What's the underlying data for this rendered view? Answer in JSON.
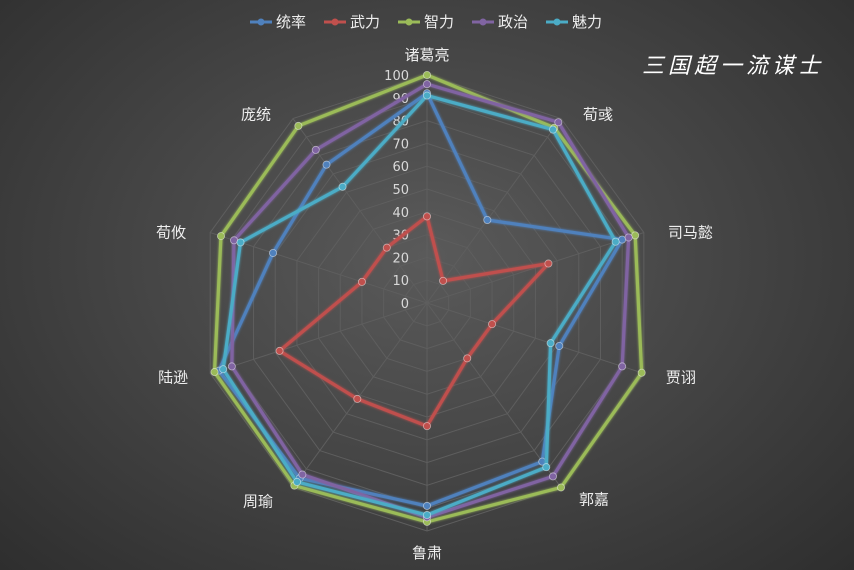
{
  "chart_data": {
    "type": "radar",
    "title": "三国超一流谋士",
    "categories": [
      "诸葛亮",
      "荀彧",
      "司马懿",
      "贾诩",
      "郭嘉",
      "鲁肃",
      "周瑜",
      "陆逊",
      "荀攸",
      "庞统"
    ],
    "series": [
      {
        "name": "统率",
        "color": "#4f81bd",
        "values": [
          92,
          45,
          90,
          61,
          86,
          89,
          95,
          96,
          71,
          75
        ]
      },
      {
        "name": "武力",
        "color": "#c0504d",
        "values": [
          38,
          12,
          56,
          30,
          30,
          54,
          52,
          68,
          30,
          30
        ]
      },
      {
        "name": "智力",
        "color": "#9bbb59",
        "values": [
          100,
          95,
          96,
          99,
          100,
          96,
          99,
          98,
          95,
          96
        ]
      },
      {
        "name": "政治",
        "color": "#8064a2",
        "values": [
          96,
          98,
          93,
          90,
          94,
          94,
          93,
          90,
          89,
          83
        ]
      },
      {
        "name": "魅力",
        "color": "#4bacc6",
        "values": [
          91,
          94,
          87,
          57,
          89,
          93,
          97,
          94,
          86,
          63
        ]
      }
    ],
    "r_ticks": [
      "0",
      "10",
      "20",
      "30",
      "40",
      "50",
      "60",
      "70",
      "80",
      "90",
      "100"
    ],
    "r_range": [
      0,
      100
    ],
    "legend_position": "top"
  }
}
